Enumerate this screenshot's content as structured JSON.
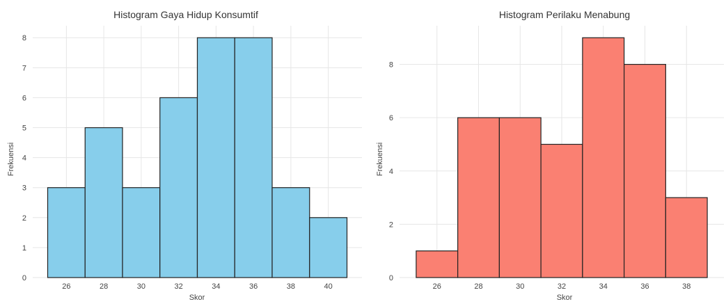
{
  "chart_data": [
    {
      "type": "bar",
      "title": "Histogram Gaya Hidup Konsumtif",
      "xlabel": "Skor",
      "ylabel": "Frekuensi",
      "bin_edges": [
        25,
        27,
        29,
        31,
        33,
        35,
        37,
        39,
        41
      ],
      "values": [
        3,
        5,
        3,
        6,
        8,
        8,
        3,
        2
      ],
      "xlim": [
        24.2,
        41.8
      ],
      "ylim": [
        0,
        8.4
      ],
      "xticks": [
        26,
        28,
        30,
        32,
        34,
        36,
        38,
        40
      ],
      "yticks": [
        0,
        1,
        2,
        3,
        4,
        5,
        6,
        7,
        8
      ],
      "color": "#87CEEB",
      "grid": true
    },
    {
      "type": "bar",
      "title": "Histogram Perilaku Menabung",
      "xlabel": "Skor",
      "ylabel": "Frekuensi",
      "bin_edges": [
        25,
        27,
        29,
        31,
        33,
        35,
        37,
        39
      ],
      "values": [
        1,
        6,
        6,
        5,
        9,
        8,
        3
      ],
      "xlim": [
        24.2,
        39.8
      ],
      "ylim": [
        0,
        9.45
      ],
      "xticks": [
        26,
        28,
        30,
        32,
        34,
        36,
        38
      ],
      "yticks": [
        0,
        2,
        4,
        6,
        8
      ],
      "color": "#FA8072",
      "grid": true
    }
  ]
}
